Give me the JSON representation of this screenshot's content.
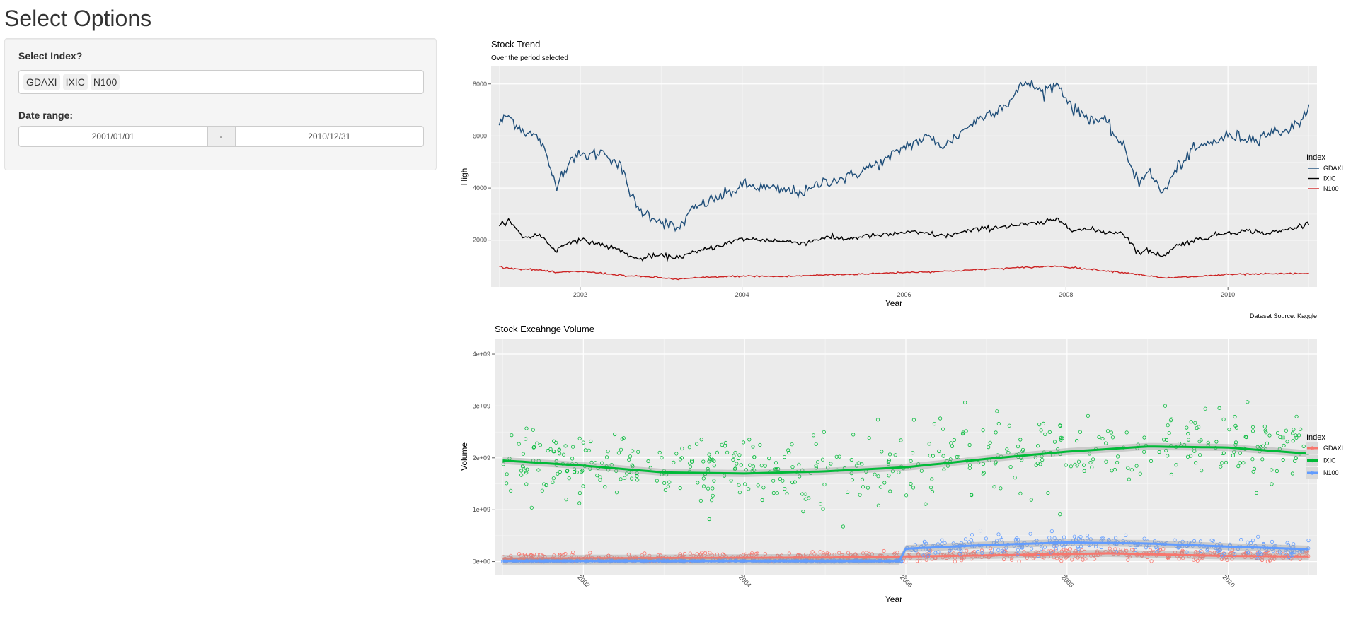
{
  "sidebar": {
    "title": "Select Options",
    "index_label": "Select Index?",
    "selected_indexes": [
      "GDAXI",
      "IXIC",
      "N100"
    ],
    "date_label": "Date range:",
    "date_start": "2001/01/01",
    "date_separator": "-",
    "date_end": "2010/12/31"
  },
  "colors": {
    "panel_bg": "#ebebeb",
    "trend_GDAXI": "#1f4e79",
    "trend_IXIC": "#000000",
    "trend_N100": "#cc2222",
    "vol_GDAXI": "#f8766d",
    "vol_IXIC": "#00ba38",
    "vol_N100": "#619cff"
  },
  "chart_data": [
    {
      "type": "line",
      "title": "Stock Trend",
      "subtitle": "Over the period selected",
      "xlabel": "Year",
      "ylabel": "High",
      "caption": "Dataset Source: Kaggle",
      "xlim": [
        2000.9,
        2011.1
      ],
      "ylim": [
        200,
        8700
      ],
      "x_ticks": [
        2002,
        2004,
        2006,
        2008,
        2010
      ],
      "y_ticks": [
        2000,
        4000,
        6000,
        8000
      ],
      "y_tick_labels": [
        "2000",
        "4000",
        "6000",
        "8000"
      ],
      "grid": true,
      "legend_title": "Index",
      "legend_position": "right",
      "series": [
        {
          "name": "GDAXI",
          "x": [
            2001.0,
            2001.1,
            2001.3,
            2001.5,
            2001.7,
            2001.9,
            2002.1,
            2002.3,
            2002.5,
            2002.7,
            2002.9,
            2003.2,
            2003.4,
            2003.6,
            2003.9,
            2004.0,
            2004.3,
            2004.5,
            2004.8,
            2005.0,
            2005.3,
            2005.5,
            2005.8,
            2006.0,
            2006.3,
            2006.5,
            2006.8,
            2007.0,
            2007.3,
            2007.5,
            2007.7,
            2007.9,
            2008.1,
            2008.3,
            2008.5,
            2008.7,
            2008.9,
            2009.0,
            2009.2,
            2009.4,
            2009.6,
            2009.8,
            2010.0,
            2010.3,
            2010.5,
            2010.8,
            2011.0
          ],
          "y": [
            6450,
            6800,
            6200,
            5900,
            4150,
            5200,
            5250,
            5400,
            4800,
            3200,
            2900,
            2400,
            3200,
            3500,
            3900,
            4100,
            4000,
            3900,
            3850,
            4250,
            4400,
            4700,
            5100,
            5600,
            5950,
            5600,
            6400,
            6800,
            7300,
            8100,
            7700,
            8000,
            7000,
            6700,
            6500,
            5600,
            4200,
            4700,
            3800,
            4900,
            5500,
            5750,
            6000,
            5900,
            6100,
            6300,
            7000
          ]
        },
        {
          "name": "IXIC",
          "x": [
            2001.0,
            2001.1,
            2001.3,
            2001.5,
            2001.7,
            2001.9,
            2002.1,
            2002.3,
            2002.5,
            2002.7,
            2002.9,
            2003.2,
            2003.4,
            2003.6,
            2003.9,
            2004.0,
            2004.3,
            2004.5,
            2004.8,
            2005.0,
            2005.3,
            2005.5,
            2005.8,
            2006.0,
            2006.3,
            2006.5,
            2006.8,
            2007.0,
            2007.3,
            2007.5,
            2007.7,
            2007.9,
            2008.1,
            2008.3,
            2008.5,
            2008.7,
            2008.9,
            2009.0,
            2009.2,
            2009.4,
            2009.6,
            2009.8,
            2010.0,
            2010.3,
            2010.5,
            2010.8,
            2011.0
          ],
          "y": [
            2500,
            2800,
            2100,
            2200,
            1600,
            2000,
            1950,
            1800,
            1600,
            1250,
            1400,
            1350,
            1500,
            1700,
            1950,
            2050,
            2000,
            1950,
            1900,
            2100,
            2050,
            2150,
            2200,
            2300,
            2250,
            2150,
            2350,
            2450,
            2550,
            2600,
            2650,
            2800,
            2400,
            2400,
            2300,
            2300,
            1500,
            1600,
            1400,
            1850,
            2000,
            2150,
            2300,
            2350,
            2250,
            2450,
            2650
          ]
        },
        {
          "name": "N100",
          "x": [
            2001.0,
            2001.2,
            2001.5,
            2001.7,
            2002.0,
            2002.3,
            2002.6,
            2002.9,
            2003.2,
            2003.5,
            2004.0,
            2004.5,
            2005.0,
            2005.5,
            2006.0,
            2006.5,
            2007.0,
            2007.5,
            2007.9,
            2008.3,
            2008.7,
            2009.0,
            2009.2,
            2009.6,
            2010.0,
            2010.5,
            2011.0
          ],
          "y": [
            980,
            900,
            850,
            750,
            800,
            720,
            620,
            580,
            500,
            560,
            620,
            600,
            660,
            700,
            760,
            800,
            880,
            950,
            1000,
            880,
            760,
            640,
            540,
            600,
            680,
            700,
            720
          ]
        }
      ]
    },
    {
      "type": "scatter",
      "title": "Stock Excahnge Volume",
      "xlabel": "Year",
      "ylabel": "Volume",
      "xlim": [
        2000.9,
        2011.1
      ],
      "ylim": [
        -250000000.0,
        4300000000.0
      ],
      "x_ticks": [
        2002,
        2004,
        2006,
        2008,
        2010
      ],
      "y_ticks": [
        0,
        1000000000.0,
        2000000000.0,
        3000000000.0,
        4000000000.0
      ],
      "y_tick_labels": [
        "0e+00",
        "1e+09",
        "2e+09",
        "3e+09",
        "4e+09"
      ],
      "grid": true,
      "legend_title": "Index",
      "legend_position": "right",
      "series": [
        {
          "name": "GDAXI",
          "x_range": [
            2001.0,
            2011.0
          ],
          "trend_x": [
            2001.0,
            2003.0,
            2005.0,
            2007.0,
            2008.5,
            2010.0,
            2011.0
          ],
          "trend_y": [
            60000000.0,
            70000000.0,
            80000000.0,
            120000000.0,
            160000000.0,
            110000000.0,
            100000000.0
          ],
          "scatter_sd": 50000000.0
        },
        {
          "name": "IXIC",
          "x_range": [
            2001.0,
            2011.0
          ],
          "trend_x": [
            2001.0,
            2002.0,
            2003.0,
            2004.0,
            2005.0,
            2006.0,
            2007.0,
            2008.0,
            2009.0,
            2010.0,
            2011.0
          ],
          "trend_y": [
            1950000000.0,
            1850000000.0,
            1720000000.0,
            1700000000.0,
            1740000000.0,
            1820000000.0,
            1980000000.0,
            2120000000.0,
            2220000000.0,
            2200000000.0,
            2080000000.0
          ],
          "scatter_sd": 360000000.0
        },
        {
          "name": "N100",
          "x_range": [
            2001.0,
            2011.0
          ],
          "trend_x": [
            2001.0,
            2005.95,
            2006.0,
            2007.0,
            2008.0,
            2009.0,
            2010.0,
            2011.0
          ],
          "trend_y": [
            10000000.0,
            10000000.0,
            250000000.0,
            320000000.0,
            370000000.0,
            350000000.0,
            290000000.0,
            240000000.0
          ],
          "scatter_sd": 80000000.0
        }
      ]
    }
  ]
}
